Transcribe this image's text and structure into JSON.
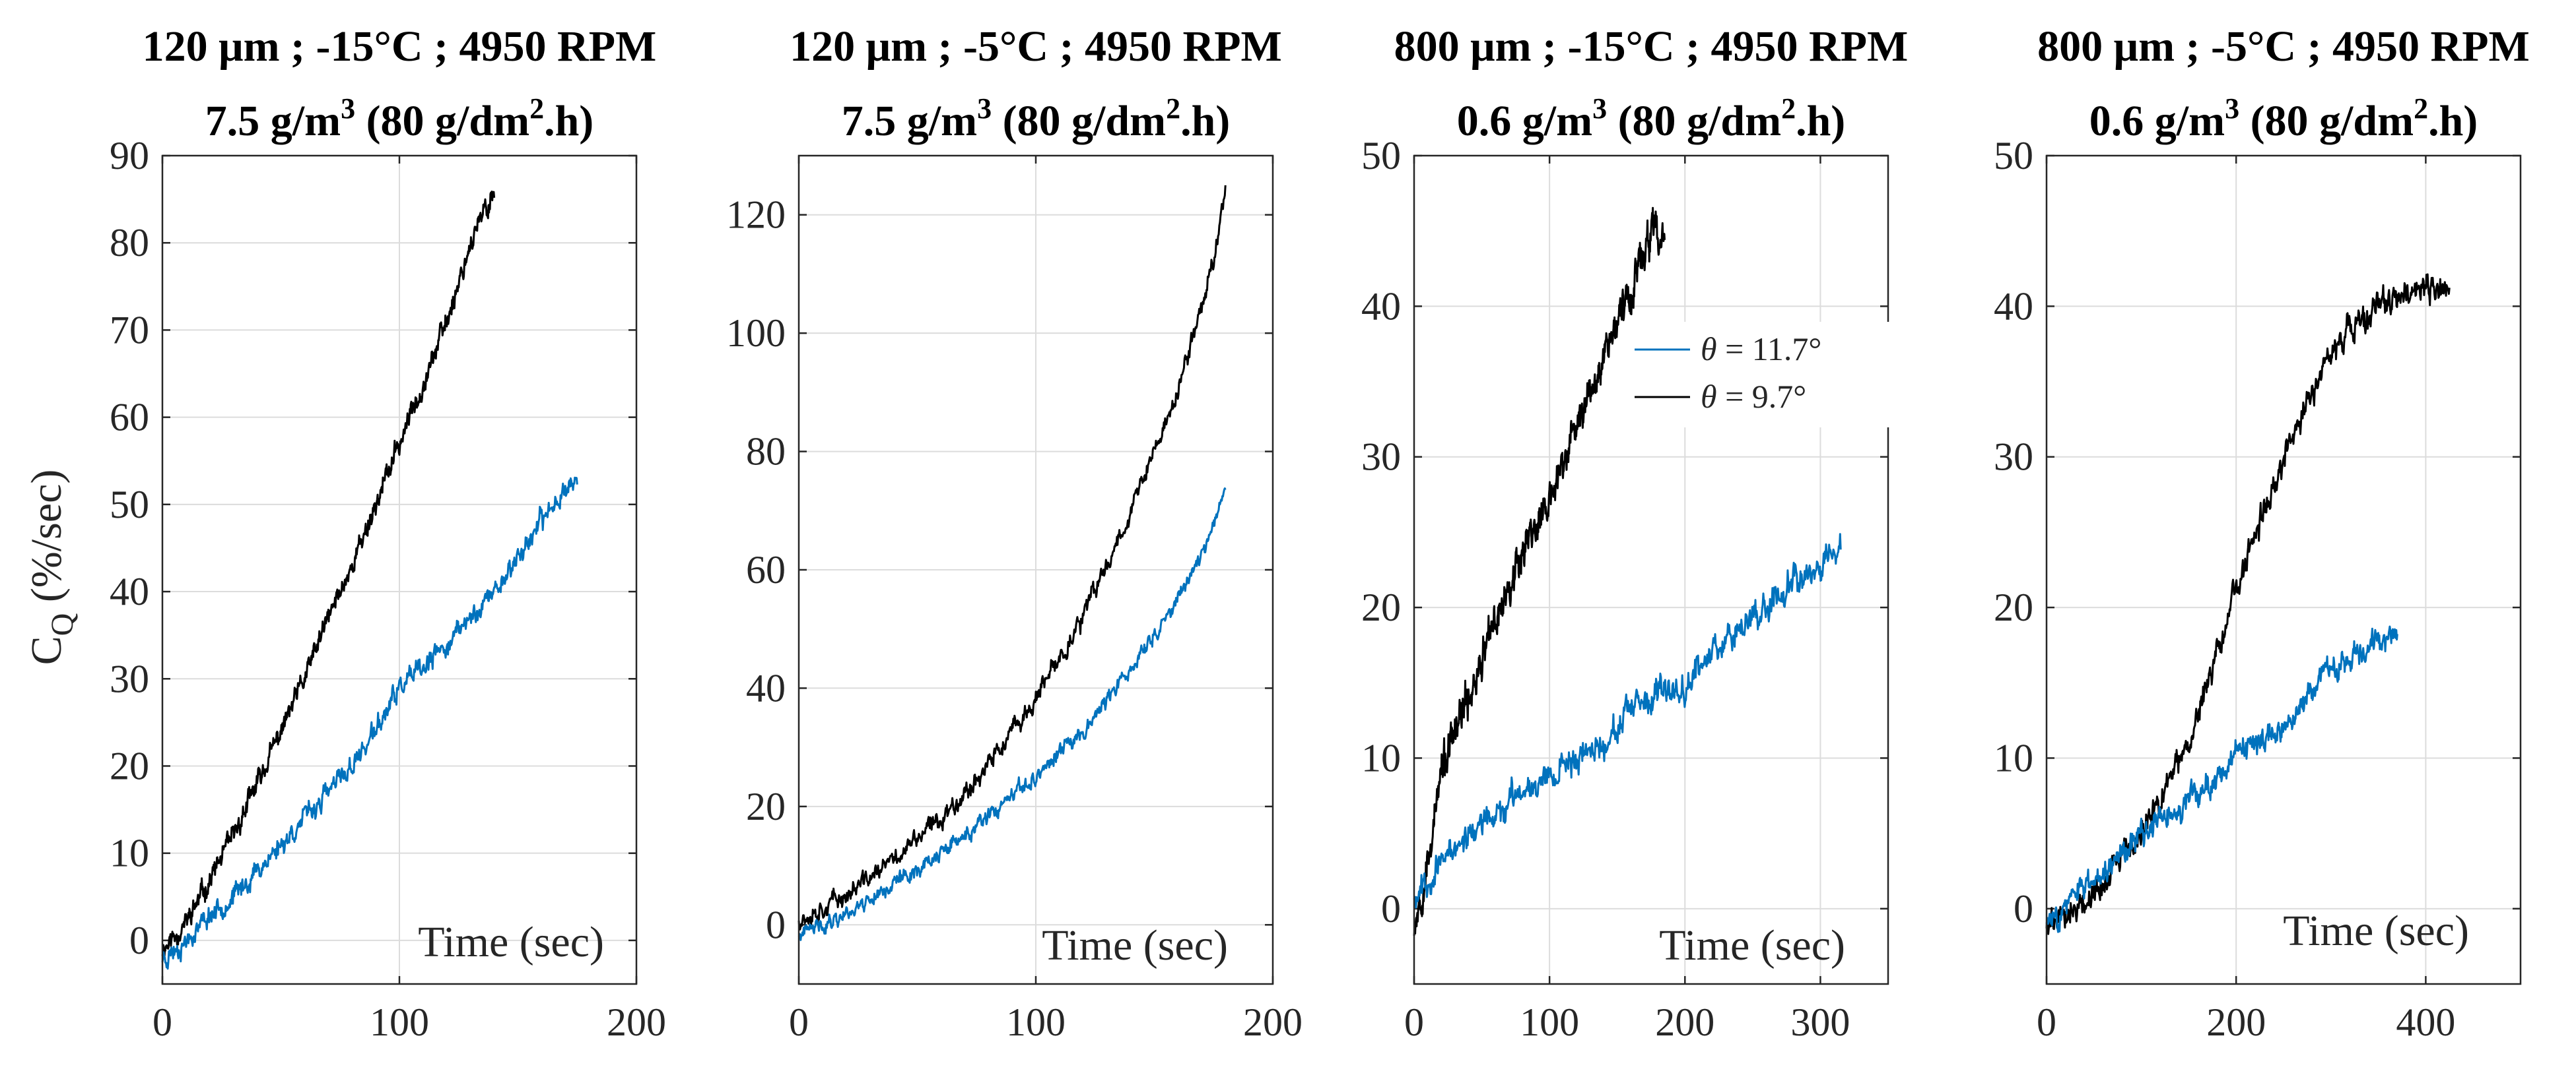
{
  "figure": {
    "ylabel_main": "C",
    "ylabel_sub": "Q",
    "ylabel_unit": " (%/sec)"
  },
  "legend": {
    "entries": [
      {
        "symbol": "θ",
        "text": " = 11.7°",
        "color": "#0072BD"
      },
      {
        "symbol": "θ",
        "text": " = 9.7°",
        "color": "#000000"
      }
    ]
  },
  "chart_data": [
    {
      "type": "line",
      "title_line1": "120 μm ; -15°C ; 4950 RPM",
      "title_line2": {
        "pre": "7.5 g/m",
        "sup1": "3",
        "mid": " (80 g/dm",
        "sup2": "2",
        "post": ".h)"
      },
      "xlabel": "Time (sec)",
      "xlim": [
        0,
        200
      ],
      "ylim": [
        -5,
        90
      ],
      "xticks": [
        0,
        100,
        200
      ],
      "yticks": [
        0,
        10,
        20,
        30,
        40,
        50,
        60,
        70,
        80,
        90
      ],
      "series": [
        {
          "name": "θ = 9.7°",
          "color": "#000000",
          "noise": 0.9,
          "seed": 11,
          "points": [
            [
              0,
              -1
            ],
            [
              10,
              2
            ],
            [
              20,
              7
            ],
            [
              30,
              12
            ],
            [
              40,
              18
            ],
            [
              50,
              24
            ],
            [
              60,
              30
            ],
            [
              70,
              37
            ],
            [
              80,
              43
            ],
            [
              90,
              50
            ],
            [
              100,
              57
            ],
            [
              110,
              64
            ],
            [
              120,
              71
            ],
            [
              130,
              80
            ],
            [
              140,
              86
            ]
          ]
        },
        {
          "name": "θ = 11.7°",
          "color": "#0072BD",
          "noise": 0.9,
          "seed": 23,
          "points": [
            [
              0,
              -2
            ],
            [
              10,
              0
            ],
            [
              20,
              3
            ],
            [
              30,
              5
            ],
            [
              40,
              8
            ],
            [
              50,
              11
            ],
            [
              60,
              14
            ],
            [
              70,
              17
            ],
            [
              80,
              20
            ],
            [
              90,
              24
            ],
            [
              100,
              29
            ],
            [
              110,
              31
            ],
            [
              120,
              34
            ],
            [
              130,
              37
            ],
            [
              140,
              40
            ],
            [
              150,
              44
            ],
            [
              160,
              48
            ],
            [
              170,
              52
            ],
            [
              175,
              53
            ]
          ]
        }
      ]
    },
    {
      "type": "line",
      "title_line1": "120 μm ; -5°C ; 4950 RPM",
      "title_line2": {
        "pre": "7.5 g/m",
        "sup1": "3",
        "mid": " (80 g/dm",
        "sup2": "2",
        "post": ".h)"
      },
      "xlabel": "Time (sec)",
      "xlim": [
        0,
        200
      ],
      "ylim": [
        -10,
        130
      ],
      "xticks": [
        0,
        100,
        200
      ],
      "yticks": [
        0,
        20,
        40,
        60,
        80,
        100,
        120
      ],
      "series": [
        {
          "name": "θ = 9.7°",
          "color": "#000000",
          "noise": 1.2,
          "seed": 37,
          "points": [
            [
              0,
              1
            ],
            [
              20,
              5
            ],
            [
              40,
              11
            ],
            [
              60,
              18
            ],
            [
              80,
              27
            ],
            [
              100,
              38
            ],
            [
              120,
              52
            ],
            [
              140,
              70
            ],
            [
              160,
              90
            ],
            [
              170,
              105
            ],
            [
              175,
              112
            ],
            [
              180,
              125
            ]
          ]
        },
        {
          "name": "θ = 11.7°",
          "color": "#0072BD",
          "noise": 1.0,
          "seed": 41,
          "points": [
            [
              0,
              -2
            ],
            [
              20,
              2
            ],
            [
              40,
              7
            ],
            [
              60,
              12
            ],
            [
              80,
              18
            ],
            [
              100,
              25
            ],
            [
              120,
              33
            ],
            [
              140,
              43
            ],
            [
              160,
              55
            ],
            [
              170,
              63
            ],
            [
              180,
              73
            ]
          ]
        }
      ]
    },
    {
      "type": "line",
      "title_line1": "800 μm ; -15°C ; 4950 RPM",
      "title_line2": {
        "pre": "0.6 g/m",
        "sup1": "3",
        "mid": " (80 g/dm",
        "sup2": "2",
        "post": ".h)"
      },
      "xlabel": "Time (sec)",
      "xlim": [
        0,
        350
      ],
      "ylim": [
        -5,
        50
      ],
      "xticks": [
        0,
        100,
        200,
        300
      ],
      "yticks": [
        0,
        10,
        20,
        30,
        40,
        50
      ],
      "series": [
        {
          "name": "θ = 9.7°",
          "color": "#000000",
          "noise": 0.9,
          "seed": 53,
          "points": [
            [
              0,
              -1
            ],
            [
              10,
              3
            ],
            [
              20,
              9
            ],
            [
              40,
              14
            ],
            [
              60,
              19
            ],
            [
              80,
              24
            ],
            [
              100,
              27
            ],
            [
              120,
              32
            ],
            [
              140,
              37
            ],
            [
              160,
              41
            ],
            [
              175,
              45
            ],
            [
              185,
              44
            ]
          ]
        },
        {
          "name": "θ = 11.7°",
          "color": "#0072BD",
          "noise": 0.7,
          "seed": 67,
          "points": [
            [
              0,
              1
            ],
            [
              20,
              3
            ],
            [
              40,
              5
            ],
            [
              60,
              6
            ],
            [
              80,
              8
            ],
            [
              100,
              9
            ],
            [
              120,
              10
            ],
            [
              140,
              11
            ],
            [
              160,
              13
            ],
            [
              180,
              14
            ],
            [
              200,
              15
            ],
            [
              220,
              17
            ],
            [
              240,
              19
            ],
            [
              260,
              20
            ],
            [
              280,
              22
            ],
            [
              300,
              23
            ],
            [
              315,
              24
            ]
          ]
        }
      ]
    },
    {
      "type": "line",
      "title_line1": "800 μm ; -5°C ; 4950 RPM",
      "title_line2": {
        "pre": "0.6 g/m",
        "sup1": "3",
        "mid": " (80 g/dm",
        "sup2": "2",
        "post": ".h)"
      },
      "xlabel": "Time (sec)",
      "xlim": [
        0,
        500
      ],
      "ylim": [
        -5,
        50
      ],
      "xticks": [
        0,
        200,
        400
      ],
      "yticks": [
        0,
        10,
        20,
        30,
        40,
        50
      ],
      "series": [
        {
          "name": "θ = 9.7°",
          "color": "#000000",
          "noise": 0.7,
          "seed": 79,
          "points": [
            [
              0,
              -1
            ],
            [
              50,
              1
            ],
            [
              100,
              5
            ],
            [
              150,
              11
            ],
            [
              200,
              21
            ],
            [
              250,
              30
            ],
            [
              300,
              37
            ],
            [
              350,
              40
            ],
            [
              400,
              41
            ],
            [
              425,
              41
            ]
          ]
        },
        {
          "name": "θ = 11.7°",
          "color": "#0072BD",
          "noise": 0.6,
          "seed": 83,
          "points": [
            [
              0,
              -1
            ],
            [
              50,
              2
            ],
            [
              100,
              5
            ],
            [
              150,
              7
            ],
            [
              200,
              10
            ],
            [
              250,
              12
            ],
            [
              300,
              16
            ],
            [
              350,
              18
            ],
            [
              370,
              18
            ]
          ]
        }
      ]
    }
  ]
}
